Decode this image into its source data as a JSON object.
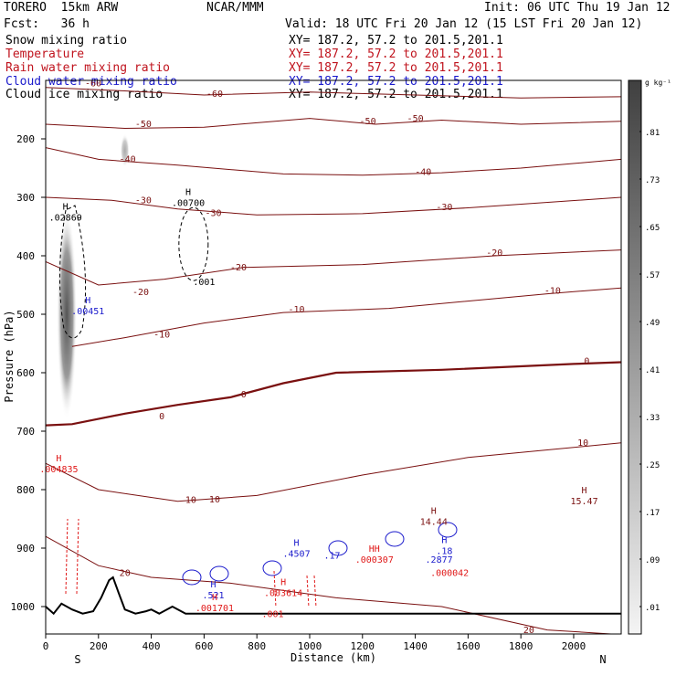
{
  "header": {
    "model": "TORERO  15km ARW",
    "center": "NCAR/MMM",
    "init": "Init: 06 UTC Thu 19 Jan 12",
    "fcst": "Fcst:   36 h",
    "valid": "Valid: 18 UTC Fri 20 Jan 12 (15 LST Fri 20 Jan 12)"
  },
  "fields": [
    {
      "name": "Snow mixing ratio",
      "xy": "XY= 187.2, 57.2 to 201.5,201.1",
      "color": "#000000"
    },
    {
      "name": "Temperature",
      "xy": "XY= 187.2, 57.2 to 201.5,201.1",
      "color": "#c0141e"
    },
    {
      "name": "Rain water mixing ratio",
      "xy": "XY= 187.2, 57.2 to 201.5,201.1",
      "color": "#c0141e"
    },
    {
      "name": "Cloud water mixing ratio",
      "xy": "XY= 187.2, 57.2 to 201.5,201.1",
      "color": "#1a1acc"
    },
    {
      "name": "Cloud ice mixing ratio",
      "xy": "XY= 187.2, 57.2 to 201.5,201.1",
      "color": "#000000"
    }
  ],
  "colorbar": {
    "unit": "g kg⁻¹",
    "labels": [
      ".81",
      ".73",
      ".65",
      ".57",
      ".49",
      ".41",
      ".33",
      ".25",
      ".17",
      ".09",
      ".01"
    ]
  },
  "orientation": {
    "left": "S",
    "right": "N"
  },
  "colors": {
    "temperature": "#7a1010",
    "freezing": "#7a1010",
    "rain": "#e01818",
    "cloud_water": "#1a1acc",
    "terrain": "#000000"
  },
  "chart_data": {
    "type": "cross-section contour",
    "xlabel": "Distance (km)",
    "ylabel": "Pressure (hPa)",
    "xlim": [
      0,
      2180
    ],
    "ylim": [
      1050,
      100
    ],
    "xticks": [
      0,
      200,
      400,
      600,
      800,
      1000,
      1200,
      1400,
      1600,
      1800,
      2000
    ],
    "yticks": [
      200,
      300,
      400,
      500,
      600,
      700,
      800,
      900,
      1000
    ],
    "temperature_labels": [
      {
        "text": "-60",
        "x": 180,
        "p": 110
      },
      {
        "text": "-60",
        "x": 640,
        "p": 128
      },
      {
        "text": "-50",
        "x": 370,
        "p": 180
      },
      {
        "text": "-50",
        "x": 1220,
        "p": 175
      },
      {
        "text": "-50",
        "x": 1400,
        "p": 170
      },
      {
        "text": "-40",
        "x": 310,
        "p": 240
      },
      {
        "text": "-40",
        "x": 1430,
        "p": 262
      },
      {
        "text": "-30",
        "x": 370,
        "p": 310
      },
      {
        "text": "-30",
        "x": 635,
        "p": 332
      },
      {
        "text": "-30",
        "x": 1510,
        "p": 322
      },
      {
        "text": "-20",
        "x": 360,
        "p": 467
      },
      {
        "text": "-20",
        "x": 730,
        "p": 425
      },
      {
        "text": "-20",
        "x": 1700,
        "p": 400
      },
      {
        "text": "-10",
        "x": 440,
        "p": 540
      },
      {
        "text": "-10",
        "x": 950,
        "p": 497
      },
      {
        "text": "-10",
        "x": 1920,
        "p": 465
      },
      {
        "text": "0",
        "x": 440,
        "p": 680
      },
      {
        "text": "0",
        "x": 750,
        "p": 642
      },
      {
        "text": "0",
        "x": 2050,
        "p": 585
      },
      {
        "text": "10",
        "x": 550,
        "p": 823
      },
      {
        "text": "10",
        "x": 640,
        "p": 822
      },
      {
        "text": "10",
        "x": 2035,
        "p": 725
      },
      {
        "text": "20",
        "x": 300,
        "p": 948
      },
      {
        "text": "20",
        "x": 1830,
        "p": 1045
      }
    ],
    "snow_maxima": [
      {
        "label": "H",
        "value": ".02869",
        "x": 75,
        "p": 340
      },
      {
        "label": "H",
        "value": ".00700",
        "x": 540,
        "p": 315
      },
      {
        "label": "",
        "value": ".001",
        "x": 600,
        "p": 450
      }
    ],
    "cloud_water_maxima": [
      {
        "label": "H",
        "value": ".00451",
        "x": 160,
        "p": 500
      },
      {
        "label": "H",
        "value": ".521",
        "x": 635,
        "p": 986
      },
      {
        "label": "H",
        "value": ".4507",
        "x": 950,
        "p": 915
      },
      {
        "label": "",
        "value": ".17",
        "x": 1085,
        "p": 918
      },
      {
        "label": "H",
        "value": ".18",
        "x": 1510,
        "p": 910
      },
      {
        "label": "",
        "value": ".2877",
        "x": 1490,
        "p": 925
      }
    ],
    "rain_maxima": [
      {
        "label": "H",
        "value": ".004835",
        "x": 50,
        "p": 770
      },
      {
        "label": "H",
        "value": ".001701",
        "x": 640,
        "p": 1008
      },
      {
        "label": "H",
        "value": ".003614",
        "x": 900,
        "p": 982
      },
      {
        "label": "",
        "value": ".001",
        "x": 860,
        "p": 1018
      },
      {
        "label": "HH",
        "value": ".000307",
        "x": 1245,
        "p": 925
      },
      {
        "label": "",
        "value": ".000042",
        "x": 1530,
        "p": 948
      }
    ],
    "other_maxima": [
      {
        "label": "H",
        "value": "14.44",
        "x": 1470,
        "p": 860
      },
      {
        "label": "H",
        "value": "15.47",
        "x": 2040,
        "p": 825
      }
    ],
    "terrain_profile": [
      [
        0,
        1000
      ],
      [
        30,
        1012
      ],
      [
        60,
        995
      ],
      [
        100,
        1005
      ],
      [
        140,
        1012
      ],
      [
        180,
        1008
      ],
      [
        210,
        985
      ],
      [
        240,
        955
      ],
      [
        255,
        950
      ],
      [
        275,
        975
      ],
      [
        300,
        1005
      ],
      [
        340,
        1012
      ],
      [
        380,
        1008
      ],
      [
        400,
        1005
      ],
      [
        430,
        1012
      ],
      [
        480,
        1000
      ],
      [
        530,
        1012
      ],
      [
        2180,
        1012
      ]
    ],
    "shaded_column": {
      "x_center": 80,
      "p_top": 320,
      "p_bottom": 680,
      "max": 0.81
    }
  }
}
